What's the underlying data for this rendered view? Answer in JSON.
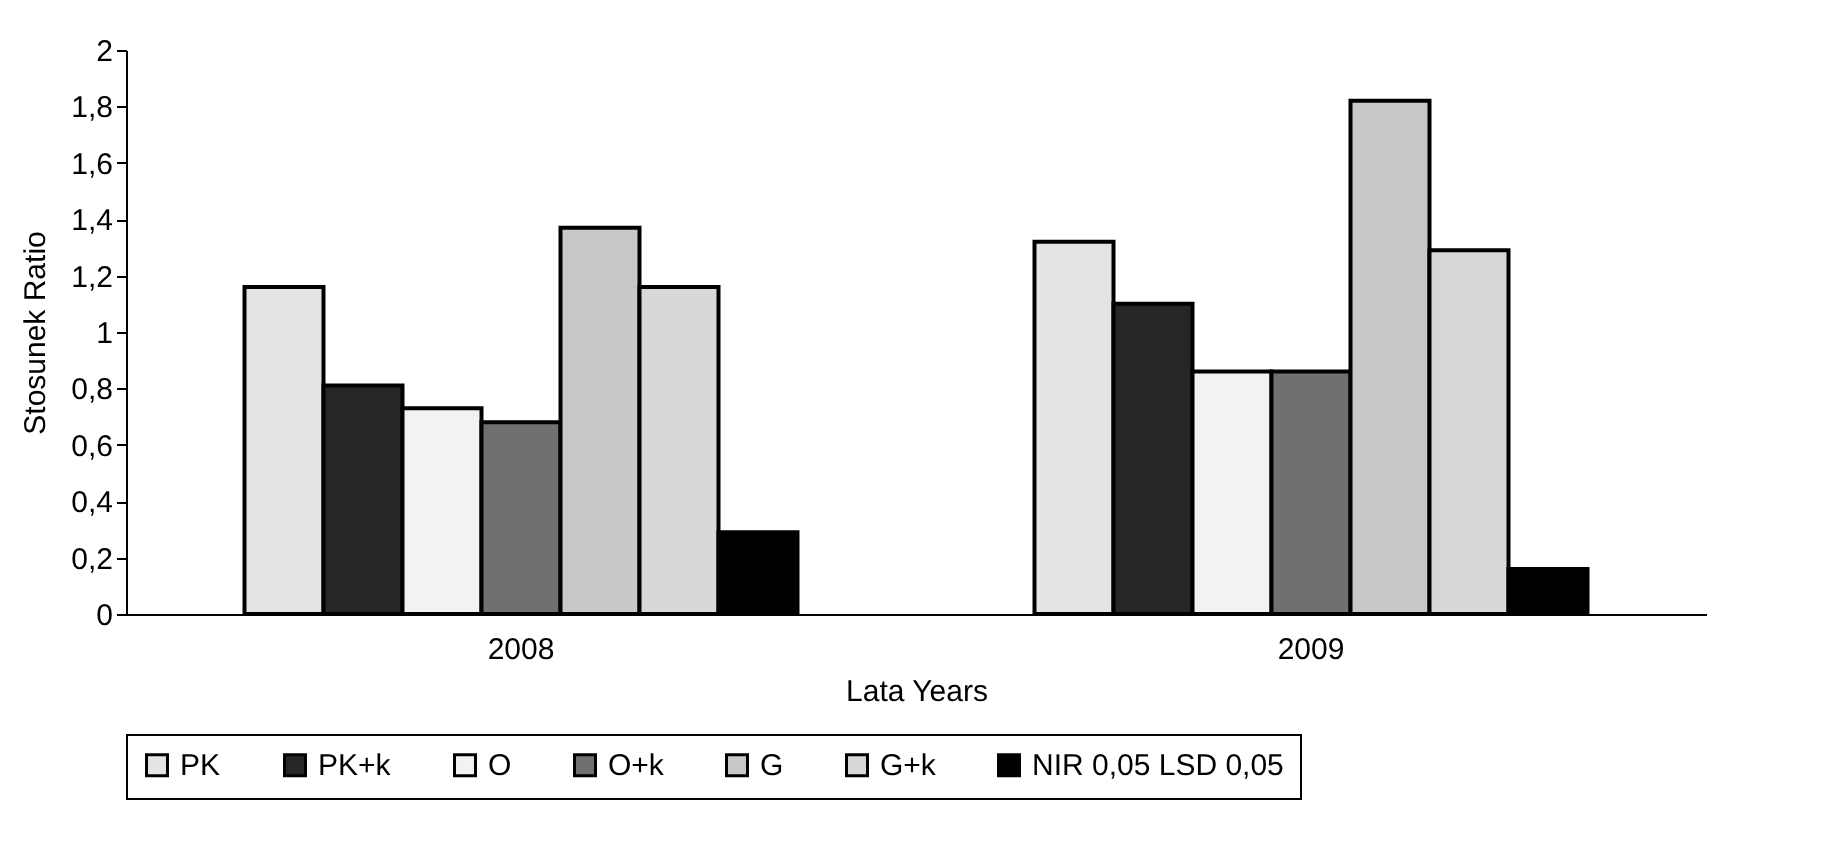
{
  "chart_data": {
    "type": "bar",
    "xlabel": "Lata   Years",
    "ylabel": "Stosunek   Ratio",
    "categories": [
      "2008",
      "2009"
    ],
    "series": [
      {
        "name": "PK",
        "color": "#e4e4e4",
        "values": [
          1.16,
          1.32
        ]
      },
      {
        "name": "PK+k",
        "color": "#262626",
        "values": [
          0.81,
          1.1
        ]
      },
      {
        "name": "O",
        "color": "#f2f2f2",
        "values": [
          0.73,
          0.86
        ]
      },
      {
        "name": "O+k",
        "color": "#707070",
        "values": [
          0.68,
          0.86
        ]
      },
      {
        "name": "G",
        "color": "#c8c8c8",
        "values": [
          1.37,
          1.82
        ]
      },
      {
        "name": "G+k",
        "color": "#d8d8d8",
        "values": [
          1.16,
          1.29
        ]
      },
      {
        "name": "NIR 0,05 LSD 0,05",
        "color": "#000000",
        "values": [
          0.29,
          0.16
        ]
      }
    ],
    "ylim": [
      0,
      2
    ],
    "yticks": [
      0,
      {
        "value": 0.2,
        "label": "0,2"
      },
      {
        "value": 0.4,
        "label": "0,4"
      },
      {
        "value": 0.6,
        "label": "0,6"
      },
      {
        "value": 0.8,
        "label": "0,8"
      },
      1,
      {
        "value": 1.2,
        "label": "1,2"
      },
      {
        "value": 1.4,
        "label": "1,4"
      },
      {
        "value": 1.6,
        "label": "1,6"
      },
      {
        "value": 1.8,
        "label": "1,8"
      },
      2
    ],
    "legend": "bottom",
    "grid": false
  }
}
